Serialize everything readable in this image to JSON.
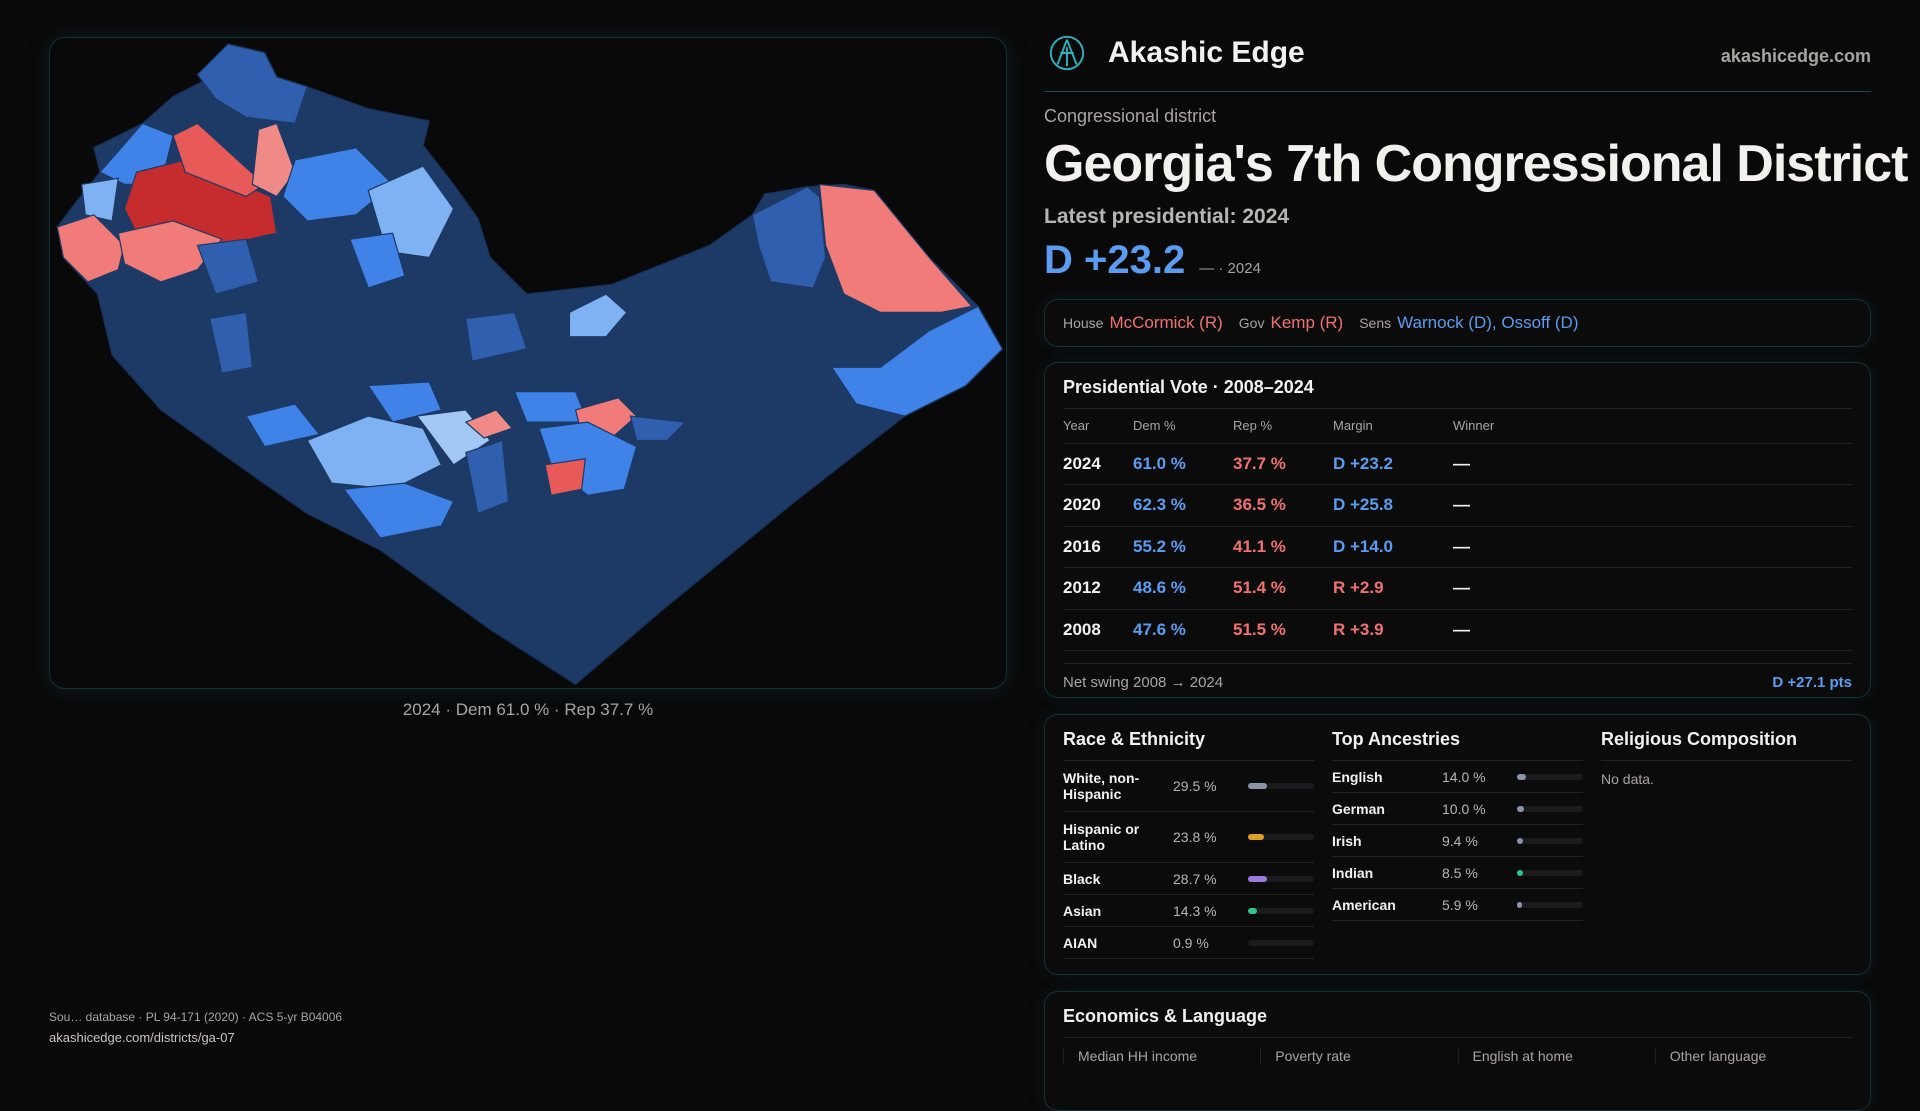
{
  "map": {
    "caption": "2024 · Dem 61.0 % · Rep 37.7 %",
    "colors": {
      "boundary": "#1d3a66",
      "dem_strong": "#2f5fae",
      "dem_mid": "#3f82e8",
      "dem_light": "#7fb2f3",
      "rep_light": "#f07b78",
      "rep_strong": "#c62b2e"
    }
  },
  "header": {
    "brand": "Akashic Edge",
    "site": "akashicedge.com",
    "logo_icon": "akashic-logo-icon"
  },
  "district": {
    "kind": "Congressional district",
    "title": "Georgia's 7th Congressional District",
    "latest": "Latest presidential: 2024",
    "margin": "D +23.2",
    "margin_note": "— · 2024"
  },
  "officials": {
    "house_label": "House",
    "house": "McCormick (R)",
    "gov_label": "Gov",
    "gov": "Kemp (R)",
    "sens_label": "Sens",
    "sens": "Warnock (D), Ossoff (D)"
  },
  "presidential": {
    "title": "Presidential Vote · 2008–2024",
    "headers": [
      "Year",
      "Dem %",
      "Rep %",
      "Margin",
      "Winner"
    ],
    "rows": [
      {
        "year": "2024",
        "dem": "61.0 %",
        "rep": "37.7 %",
        "margin": "D +23.2",
        "party": "D",
        "winner": "—"
      },
      {
        "year": "2020",
        "dem": "62.3 %",
        "rep": "36.5 %",
        "margin": "D +25.8",
        "party": "D",
        "winner": "—"
      },
      {
        "year": "2016",
        "dem": "55.2 %",
        "rep": "41.1 %",
        "margin": "D +14.0",
        "party": "D",
        "winner": "—"
      },
      {
        "year": "2012",
        "dem": "48.6 %",
        "rep": "51.4 %",
        "margin": "R +2.9",
        "party": "R",
        "winner": "—"
      },
      {
        "year": "2008",
        "dem": "47.6 %",
        "rep": "51.5 %",
        "margin": "R +3.9",
        "party": "R",
        "winner": "—"
      }
    ],
    "swing_label": "Net swing 2008 → 2024",
    "swing": "D +27.1 pts"
  },
  "race": {
    "title": "Race & Ethnicity",
    "items": [
      {
        "name": "White, non-Hispanic",
        "value": "29.5 %",
        "pct": 29.5,
        "color": "#8a94a8"
      },
      {
        "name": "Hispanic or Latino",
        "value": "23.8 %",
        "pct": 23.8,
        "color": "#e0a020"
      },
      {
        "name": "Black",
        "value": "28.7 %",
        "pct": 28.7,
        "color": "#9b7be0"
      },
      {
        "name": "Asian",
        "value": "14.3 %",
        "pct": 14.3,
        "color": "#2ec48a"
      },
      {
        "name": "AIAN",
        "value": "0.9 %",
        "pct": 0.9,
        "color": "#8a94a8"
      }
    ]
  },
  "ancestry": {
    "title": "Top Ancestries",
    "items": [
      {
        "name": "English",
        "value": "14.0 %",
        "pct": 14.0,
        "color": "#8a94a8"
      },
      {
        "name": "German",
        "value": "10.0 %",
        "pct": 10.0,
        "color": "#8a94a8"
      },
      {
        "name": "Irish",
        "value": "9.4 %",
        "pct": 9.4,
        "color": "#8a94a8"
      },
      {
        "name": "Indian",
        "value": "8.5 %",
        "pct": 8.5,
        "color": "#2ec48a"
      },
      {
        "name": "American",
        "value": "5.9 %",
        "pct": 5.9,
        "color": "#8a94a8"
      }
    ]
  },
  "religion": {
    "title": "Religious Composition",
    "empty": "No data."
  },
  "economics": {
    "title": "Economics & Language",
    "stats": [
      {
        "label": "Median HH income"
      },
      {
        "label": "Poverty rate"
      },
      {
        "label": "English at home"
      },
      {
        "label": "Other language"
      }
    ]
  },
  "footer": {
    "source": "Sou… database · PL 94-171 (2020) · ACS 5-yr B04006",
    "url": "akashicedge.com/districts/ga-07"
  }
}
